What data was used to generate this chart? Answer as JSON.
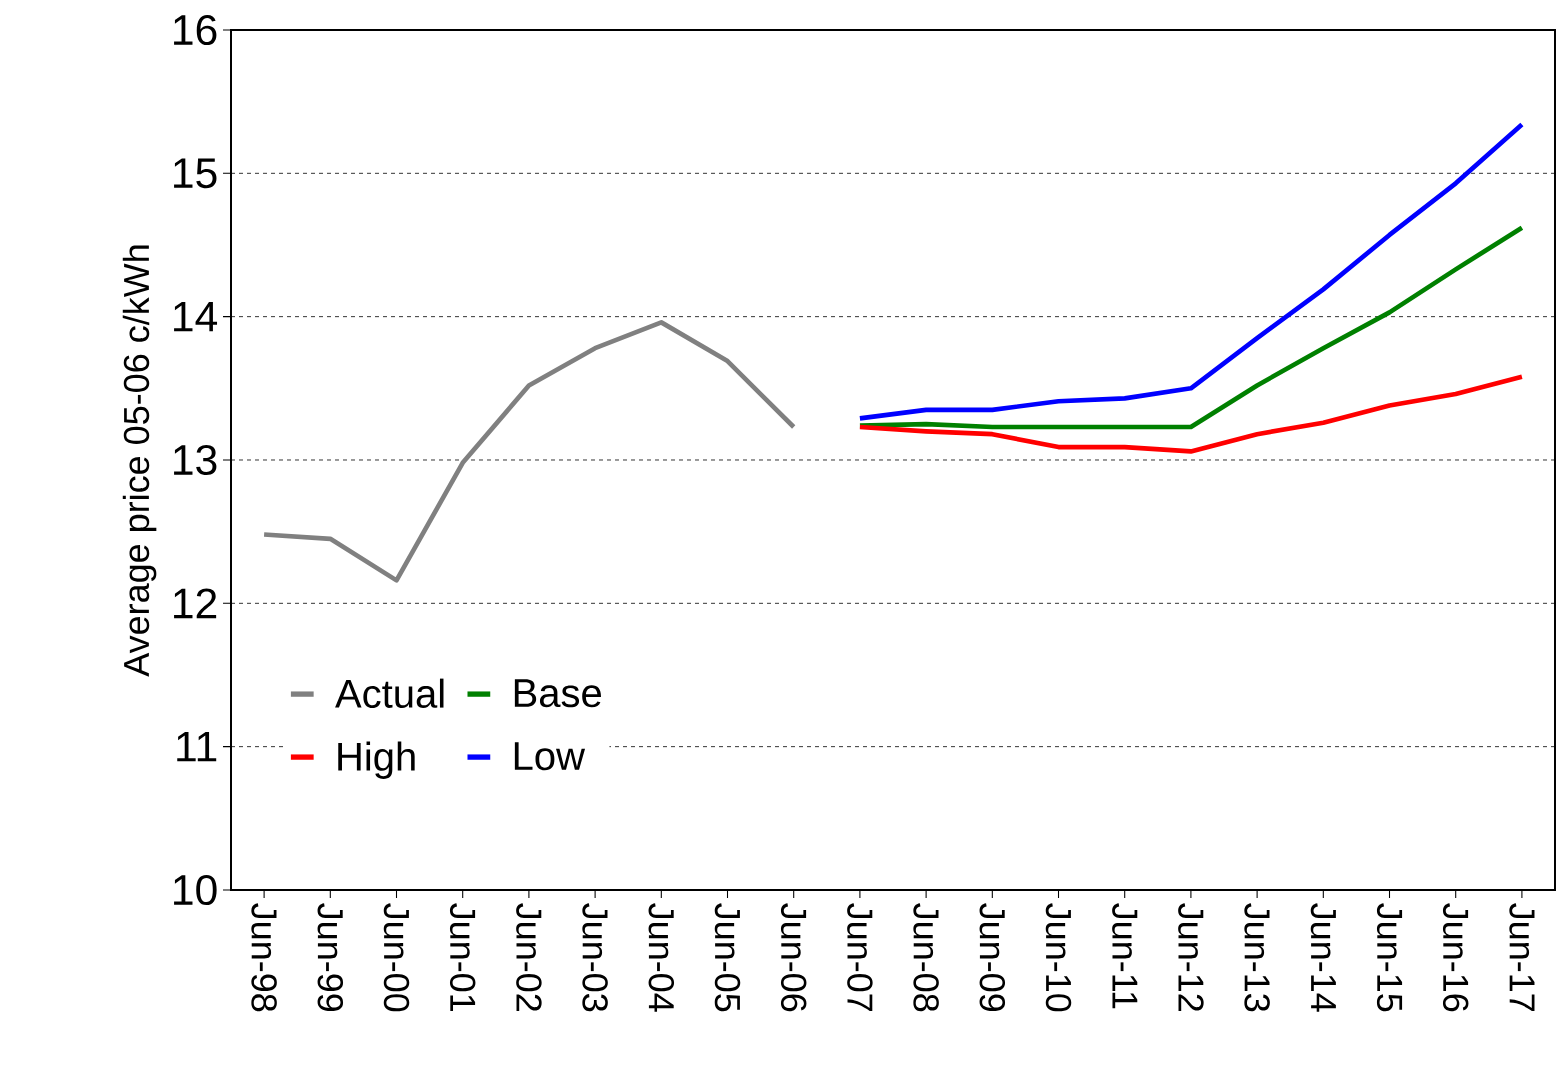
{
  "chart_data": {
    "type": "line",
    "ylabel": "Average price 05-06 c/kWh",
    "categories": [
      "Jun-98",
      "Jun-99",
      "Jun-00",
      "Jun-01",
      "Jun-02",
      "Jun-03",
      "Jun-04",
      "Jun-05",
      "Jun-06",
      "Jun-07",
      "Jun-08",
      "Jun-09",
      "Jun-10",
      "Jun-11",
      "Jun-12",
      "Jun-13",
      "Jun-14",
      "Jun-15",
      "Jun-16",
      "Jun-17"
    ],
    "series": [
      {
        "name": "Actual",
        "color": "#808080",
        "values": [
          12.48,
          12.45,
          12.16,
          12.98,
          13.52,
          13.78,
          13.96,
          13.69,
          13.23,
          null,
          null,
          null,
          null,
          null,
          null,
          null,
          null,
          null,
          null,
          null
        ]
      },
      {
        "name": "Base",
        "color": "#008000",
        "values": [
          null,
          null,
          null,
          null,
          null,
          null,
          null,
          null,
          null,
          13.24,
          13.25,
          13.23,
          13.23,
          13.23,
          13.23,
          13.52,
          13.78,
          14.03,
          14.33,
          14.62
        ]
      },
      {
        "name": "High",
        "color": "#ff0000",
        "values": [
          null,
          null,
          null,
          null,
          null,
          null,
          null,
          null,
          null,
          13.23,
          13.2,
          13.18,
          13.09,
          13.09,
          13.06,
          13.18,
          13.26,
          13.38,
          13.46,
          13.58
        ]
      },
      {
        "name": "Low",
        "color": "#0000ff",
        "values": [
          null,
          null,
          null,
          null,
          null,
          null,
          null,
          null,
          null,
          13.29,
          13.35,
          13.35,
          13.41,
          13.43,
          13.5,
          13.85,
          14.19,
          14.57,
          14.93,
          15.34
        ]
      }
    ],
    "ylim": [
      10,
      16
    ],
    "yticks": [
      10,
      11,
      12,
      13,
      14,
      15,
      16
    ],
    "grid": "y",
    "legend": "bottom left",
    "marker": "none",
    "line_style": "solid"
  }
}
